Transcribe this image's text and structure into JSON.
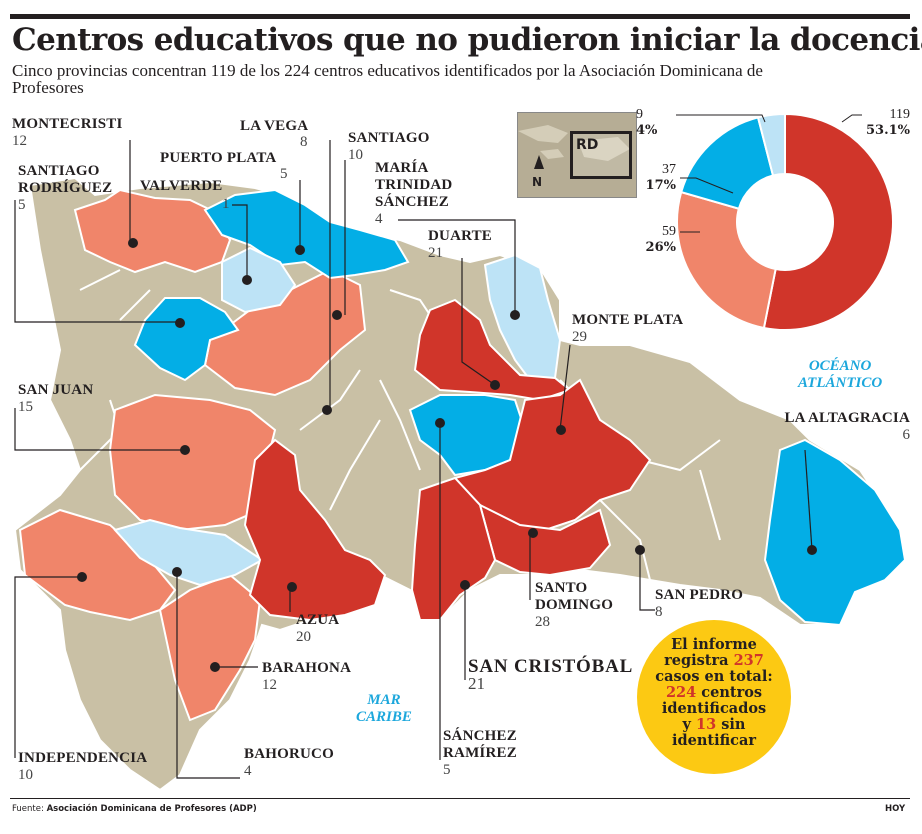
{
  "header": {
    "title": "Centros educativos que no pudieron iniciar la docencia",
    "subtitle": "Cinco provincias concentran 119 de los 224 centros educativos identificados por la Asociación Dominicana de Profesores"
  },
  "colors": {
    "red": "#d0352a",
    "salmon": "#f0856a",
    "blue": "#03aee6",
    "light_blue": "#bde3f6",
    "beige": "#c9c0a5",
    "badge": "#fcc913"
  },
  "provinces": [
    {
      "name": "MONTECRISTI",
      "value": "12"
    },
    {
      "name": "SANTIAGO RODRÍGUEZ",
      "line1": "SANTIAGO",
      "line2": "RODRÍGUEZ",
      "value": "5"
    },
    {
      "name": "VALVERDE",
      "value": "1"
    },
    {
      "name": "PUERTO PLATA",
      "value": "5"
    },
    {
      "name": "LA VEGA",
      "value": "8"
    },
    {
      "name": "SANTIAGO",
      "value": "10"
    },
    {
      "name": "MARÍA TRINIDAD SÁNCHEZ",
      "line1": "MARÍA",
      "line2": "TRINIDAD",
      "line3": "SÁNCHEZ",
      "value": "4"
    },
    {
      "name": "DUARTE",
      "value": "21"
    },
    {
      "name": "MONTE PLATA",
      "value": "29"
    },
    {
      "name": "SAN JUAN",
      "value": "15"
    },
    {
      "name": "LA ALTAGRACIA",
      "value": "6"
    },
    {
      "name": "AZUA",
      "value": "20"
    },
    {
      "name": "SANTO DOMINGO",
      "line1": "SANTO",
      "line2": "DOMINGO",
      "value": "28"
    },
    {
      "name": "SAN PEDRO",
      "value": "8"
    },
    {
      "name": "BARAHONA",
      "value": "12"
    },
    {
      "name": "SAN CRISTÓBAL",
      "value": "21"
    },
    {
      "name": "INDEPENDENCIA",
      "value": "10"
    },
    {
      "name": "BAHORUCO",
      "value": "4"
    },
    {
      "name": "SÁNCHEZ RAMÍREZ",
      "line1": "SÁNCHEZ",
      "line2": "RAMÍREZ",
      "value": "5"
    }
  ],
  "seas": {
    "atlantic_line1": "OCÉANO",
    "atlantic_line2": "ATLÁNTICO",
    "caribe_line1": "MAR",
    "caribe_line2": "CARIBE"
  },
  "inset": {
    "label": "RD",
    "north": "N"
  },
  "chart_data": {
    "type": "pie",
    "style": "donut",
    "slices": [
      {
        "count": 119,
        "pct": "53.1%",
        "color": "#d0352a"
      },
      {
        "count": 59,
        "pct": "26%",
        "color": "#f0856a"
      },
      {
        "count": 37,
        "pct": "17%",
        "color": "#03aee6"
      },
      {
        "count": 9,
        "pct": "4%",
        "color": "#bde3f6"
      }
    ]
  },
  "badge": {
    "w1": "El informe",
    "w2": "registra",
    "n_total": "237",
    "w3": "casos en total:",
    "n_identified": "224",
    "w4": "centros",
    "w5": "identificados",
    "w6": "y",
    "n_unidentified": "13",
    "w7": "sin",
    "w8": "identificar"
  },
  "footer": {
    "source_label": "Fuente:",
    "source_text": "Asociación Dominicana de Profesores (ADP)",
    "credit": "HOY"
  }
}
